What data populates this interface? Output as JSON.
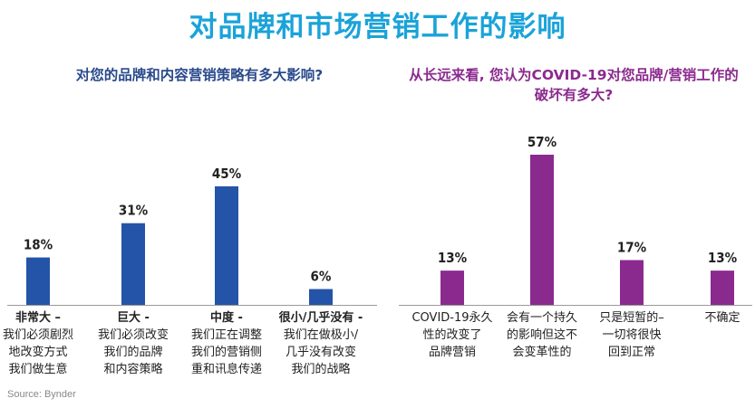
{
  "title": "对品牌和市场营销工作的影响",
  "source": "Source: Bynder",
  "chart_data": [
    {
      "type": "bar",
      "title": "对您的品牌和内容营销策略有多大影响?",
      "categories": [
        [
          "非常大 –",
          "我们必须剧烈",
          "地改变方式",
          "我们做生意"
        ],
        [
          "巨大 -",
          "我们必须改变",
          "我们的品牌",
          "和内容策略"
        ],
        [
          "中度 -",
          "我们正在调整",
          "我们的营销侧",
          "重和讯息传递"
        ],
        [
          "很小/几乎没有 -",
          "我们在做极小/",
          "几乎没有改变",
          "我们的战略"
        ]
      ],
      "values": [
        18,
        31,
        45,
        6
      ],
      "value_labels": [
        "18%",
        "31%",
        "45%",
        "6%"
      ],
      "color": "#2454a8",
      "ylim": [
        0,
        60
      ]
    },
    {
      "type": "bar",
      "title": "从长远来看, 您认为COVID-19对您品牌/营销工作的破坏有多大?",
      "categories": [
        [
          "COVID-19永久",
          "性的改变了",
          "品牌营销"
        ],
        [
          "会有一个持久",
          "的影响但这不",
          "会变革性的"
        ],
        [
          "只是短暂的–",
          "一切将很快",
          "回到正常"
        ],
        [
          "不确定"
        ]
      ],
      "values": [
        13,
        57,
        17,
        13
      ],
      "value_labels": [
        "13%",
        "57%",
        "17%",
        "13%"
      ],
      "color": "#8b2a8e",
      "ylim": [
        0,
        60
      ]
    }
  ]
}
